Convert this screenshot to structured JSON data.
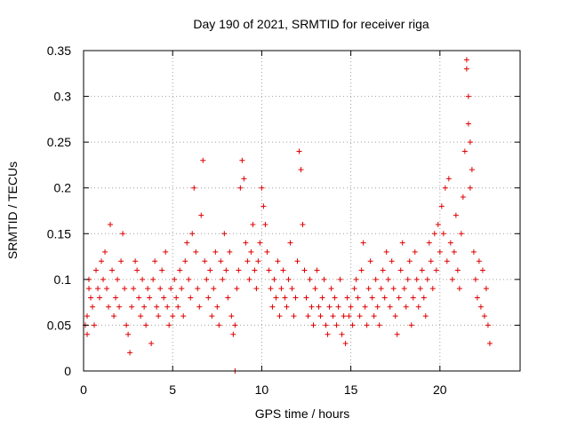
{
  "chart_data": {
    "type": "scatter",
    "title": "Day 190 of 2021, SRMTID for receiver riga",
    "xlabel": "GPS time / hours",
    "ylabel": "SRMTID / TECUs",
    "xlim": [
      0,
      24.5
    ],
    "ylim": [
      0,
      0.35
    ],
    "xticks": [
      0,
      5,
      10,
      15,
      20
    ],
    "xtick_labels": [
      "0",
      "5",
      "10",
      "15",
      "20"
    ],
    "yticks": [
      0,
      0.05,
      0.1,
      0.15,
      0.2,
      0.25,
      0.3,
      0.35
    ],
    "ytick_labels": [
      "0",
      "0.05",
      "0.1",
      "0.15",
      "0.2",
      "0.25",
      "0.3",
      "0.35"
    ],
    "grid": true,
    "marker": "plus",
    "color": "#e00000",
    "series": [
      {
        "name": "SRMTID",
        "points": [
          [
            0.1,
            0.05
          ],
          [
            0.2,
            0.04
          ],
          [
            0.2,
            0.06
          ],
          [
            0.3,
            0.09
          ],
          [
            0.3,
            0.1
          ],
          [
            0.4,
            0.08
          ],
          [
            0.5,
            0.07
          ],
          [
            0.6,
            0.05
          ],
          [
            0.7,
            0.11
          ],
          [
            0.8,
            0.09
          ],
          [
            0.9,
            0.08
          ],
          [
            1.0,
            0.12
          ],
          [
            1.1,
            0.1
          ],
          [
            1.2,
            0.13
          ],
          [
            1.3,
            0.09
          ],
          [
            1.4,
            0.07
          ],
          [
            1.5,
            0.16
          ],
          [
            1.6,
            0.11
          ],
          [
            1.7,
            0.06
          ],
          [
            1.8,
            0.08
          ],
          [
            1.9,
            0.1
          ],
          [
            2.0,
            0.07
          ],
          [
            2.1,
            0.12
          ],
          [
            2.2,
            0.15
          ],
          [
            2.3,
            0.09
          ],
          [
            2.4,
            0.05
          ],
          [
            2.5,
            0.04
          ],
          [
            2.6,
            0.02
          ],
          [
            2.7,
            0.07
          ],
          [
            2.8,
            0.09
          ],
          [
            2.9,
            0.12
          ],
          [
            3.0,
            0.11
          ],
          [
            3.1,
            0.08
          ],
          [
            3.2,
            0.06
          ],
          [
            3.3,
            0.1
          ],
          [
            3.4,
            0.07
          ],
          [
            3.5,
            0.05
          ],
          [
            3.6,
            0.09
          ],
          [
            3.7,
            0.08
          ],
          [
            3.8,
            0.03
          ],
          [
            3.9,
            0.1
          ],
          [
            4.0,
            0.12
          ],
          [
            4.1,
            0.07
          ],
          [
            4.2,
            0.06
          ],
          [
            4.3,
            0.09
          ],
          [
            4.4,
            0.11
          ],
          [
            4.5,
            0.08
          ],
          [
            4.6,
            0.13
          ],
          [
            4.7,
            0.07
          ],
          [
            4.8,
            0.05
          ],
          [
            4.9,
            0.09
          ],
          [
            5.0,
            0.06
          ],
          [
            5.1,
            0.1
          ],
          [
            5.2,
            0.08
          ],
          [
            5.3,
            0.07
          ],
          [
            5.4,
            0.11
          ],
          [
            5.5,
            0.09
          ],
          [
            5.6,
            0.06
          ],
          [
            5.7,
            0.12
          ],
          [
            5.8,
            0.14
          ],
          [
            5.9,
            0.1
          ],
          [
            6.0,
            0.08
          ],
          [
            6.1,
            0.15
          ],
          [
            6.2,
            0.2
          ],
          [
            6.3,
            0.13
          ],
          [
            6.4,
            0.09
          ],
          [
            6.5,
            0.07
          ],
          [
            6.6,
            0.17
          ],
          [
            6.7,
            0.23
          ],
          [
            6.8,
            0.12
          ],
          [
            6.9,
            0.1
          ],
          [
            7.0,
            0.08
          ],
          [
            7.1,
            0.11
          ],
          [
            7.2,
            0.06
          ],
          [
            7.3,
            0.09
          ],
          [
            7.4,
            0.13
          ],
          [
            7.5,
            0.07
          ],
          [
            7.6,
            0.05
          ],
          [
            7.7,
            0.12
          ],
          [
            7.8,
            0.1
          ],
          [
            7.9,
            0.15
          ],
          [
            8.0,
            0.11
          ],
          [
            8.1,
            0.08
          ],
          [
            8.2,
            0.13
          ],
          [
            8.3,
            0.06
          ],
          [
            8.4,
            0.04
          ],
          [
            8.5,
            0.05
          ],
          [
            8.6,
            0.09
          ],
          [
            8.7,
            0.11
          ],
          [
            8.8,
            0.2
          ],
          [
            8.9,
            0.23
          ],
          [
            9.0,
            0.21
          ],
          [
            9.1,
            0.14
          ],
          [
            9.2,
            0.12
          ],
          [
            9.3,
            0.1
          ],
          [
            9.4,
            0.13
          ],
          [
            9.5,
            0.16
          ],
          [
            9.6,
            0.11
          ],
          [
            9.7,
            0.09
          ],
          [
            9.8,
            0.12
          ],
          [
            9.9,
            0.14
          ],
          [
            10.0,
            0.2
          ],
          [
            10.1,
            0.18
          ],
          [
            10.2,
            0.16
          ],
          [
            10.3,
            0.13
          ],
          [
            10.4,
            0.11
          ],
          [
            10.5,
            0.09
          ],
          [
            10.6,
            0.07
          ],
          [
            10.7,
            0.1
          ],
          [
            10.8,
            0.08
          ],
          [
            10.9,
            0.12
          ],
          [
            11.0,
            0.06
          ],
          [
            11.1,
            0.09
          ],
          [
            11.2,
            0.11
          ],
          [
            11.3,
            0.08
          ],
          [
            11.4,
            0.07
          ],
          [
            11.5,
            0.1
          ],
          [
            11.6,
            0.14
          ],
          [
            11.7,
            0.09
          ],
          [
            11.8,
            0.06
          ],
          [
            11.9,
            0.08
          ],
          [
            12.0,
            0.12
          ],
          [
            12.1,
            0.24
          ],
          [
            12.2,
            0.22
          ],
          [
            12.3,
            0.16
          ],
          [
            12.4,
            0.11
          ],
          [
            12.5,
            0.08
          ],
          [
            12.6,
            0.06
          ],
          [
            12.7,
            0.1
          ],
          [
            12.8,
            0.07
          ],
          [
            12.9,
            0.05
          ],
          [
            13.0,
            0.09
          ],
          [
            13.1,
            0.11
          ],
          [
            13.2,
            0.07
          ],
          [
            13.3,
            0.06
          ],
          [
            13.4,
            0.08
          ],
          [
            13.5,
            0.1
          ],
          [
            13.6,
            0.05
          ],
          [
            13.7,
            0.04
          ],
          [
            13.8,
            0.07
          ],
          [
            13.9,
            0.09
          ],
          [
            14.0,
            0.06
          ],
          [
            14.1,
            0.08
          ],
          [
            14.2,
            0.05
          ],
          [
            14.3,
            0.07
          ],
          [
            14.4,
            0.1
          ],
          [
            14.5,
            0.04
          ],
          [
            14.6,
            0.06
          ],
          [
            14.7,
            0.03
          ],
          [
            14.8,
            0.08
          ],
          [
            14.9,
            0.06
          ],
          [
            15.0,
            0.07
          ],
          [
            15.1,
            0.05
          ],
          [
            15.2,
            0.09
          ],
          [
            15.3,
            0.1
          ],
          [
            15.4,
            0.08
          ],
          [
            15.5,
            0.06
          ],
          [
            15.6,
            0.11
          ],
          [
            15.7,
            0.14
          ],
          [
            15.8,
            0.07
          ],
          [
            15.9,
            0.05
          ],
          [
            16.0,
            0.09
          ],
          [
            16.1,
            0.12
          ],
          [
            16.2,
            0.08
          ],
          [
            16.3,
            0.06
          ],
          [
            16.4,
            0.1
          ],
          [
            16.5,
            0.07
          ],
          [
            16.6,
            0.05
          ],
          [
            16.7,
            0.09
          ],
          [
            16.8,
            0.11
          ],
          [
            16.9,
            0.08
          ],
          [
            17.0,
            0.13
          ],
          [
            17.1,
            0.1
          ],
          [
            17.2,
            0.07
          ],
          [
            17.3,
            0.12
          ],
          [
            17.4,
            0.09
          ],
          [
            17.5,
            0.06
          ],
          [
            17.6,
            0.04
          ],
          [
            17.7,
            0.08
          ],
          [
            17.8,
            0.11
          ],
          [
            17.9,
            0.14
          ],
          [
            18.0,
            0.09
          ],
          [
            18.1,
            0.07
          ],
          [
            18.2,
            0.1
          ],
          [
            18.3,
            0.12
          ],
          [
            18.4,
            0.05
          ],
          [
            18.5,
            0.08
          ],
          [
            18.6,
            0.13
          ],
          [
            18.7,
            0.1
          ],
          [
            18.8,
            0.07
          ],
          [
            18.9,
            0.09
          ],
          [
            19.0,
            0.11
          ],
          [
            19.1,
            0.08
          ],
          [
            19.2,
            0.06
          ],
          [
            19.3,
            0.1
          ],
          [
            19.4,
            0.14
          ],
          [
            19.5,
            0.12
          ],
          [
            19.6,
            0.09
          ],
          [
            19.7,
            0.15
          ],
          [
            19.8,
            0.11
          ],
          [
            19.9,
            0.16
          ],
          [
            20.0,
            0.13
          ],
          [
            20.1,
            0.18
          ],
          [
            20.2,
            0.15
          ],
          [
            20.3,
            0.2
          ],
          [
            20.4,
            0.12
          ],
          [
            20.5,
            0.21
          ],
          [
            20.6,
            0.14
          ],
          [
            20.7,
            0.1
          ],
          [
            20.8,
            0.13
          ],
          [
            20.9,
            0.17
          ],
          [
            21.0,
            0.11
          ],
          [
            21.1,
            0.09
          ],
          [
            21.2,
            0.15
          ],
          [
            21.3,
            0.19
          ],
          [
            21.4,
            0.24
          ],
          [
            21.5,
            0.34
          ],
          [
            21.5,
            0.33
          ],
          [
            21.6,
            0.3
          ],
          [
            21.6,
            0.27
          ],
          [
            21.7,
            0.25
          ],
          [
            21.7,
            0.2
          ],
          [
            21.8,
            0.22
          ],
          [
            21.9,
            0.13
          ],
          [
            22.0,
            0.1
          ],
          [
            22.1,
            0.08
          ],
          [
            22.2,
            0.12
          ],
          [
            22.3,
            0.07
          ],
          [
            22.4,
            0.11
          ],
          [
            22.5,
            0.06
          ],
          [
            22.6,
            0.09
          ],
          [
            22.7,
            0.05
          ],
          [
            22.8,
            0.03
          ],
          [
            8.5,
            0.0
          ]
        ]
      }
    ]
  }
}
